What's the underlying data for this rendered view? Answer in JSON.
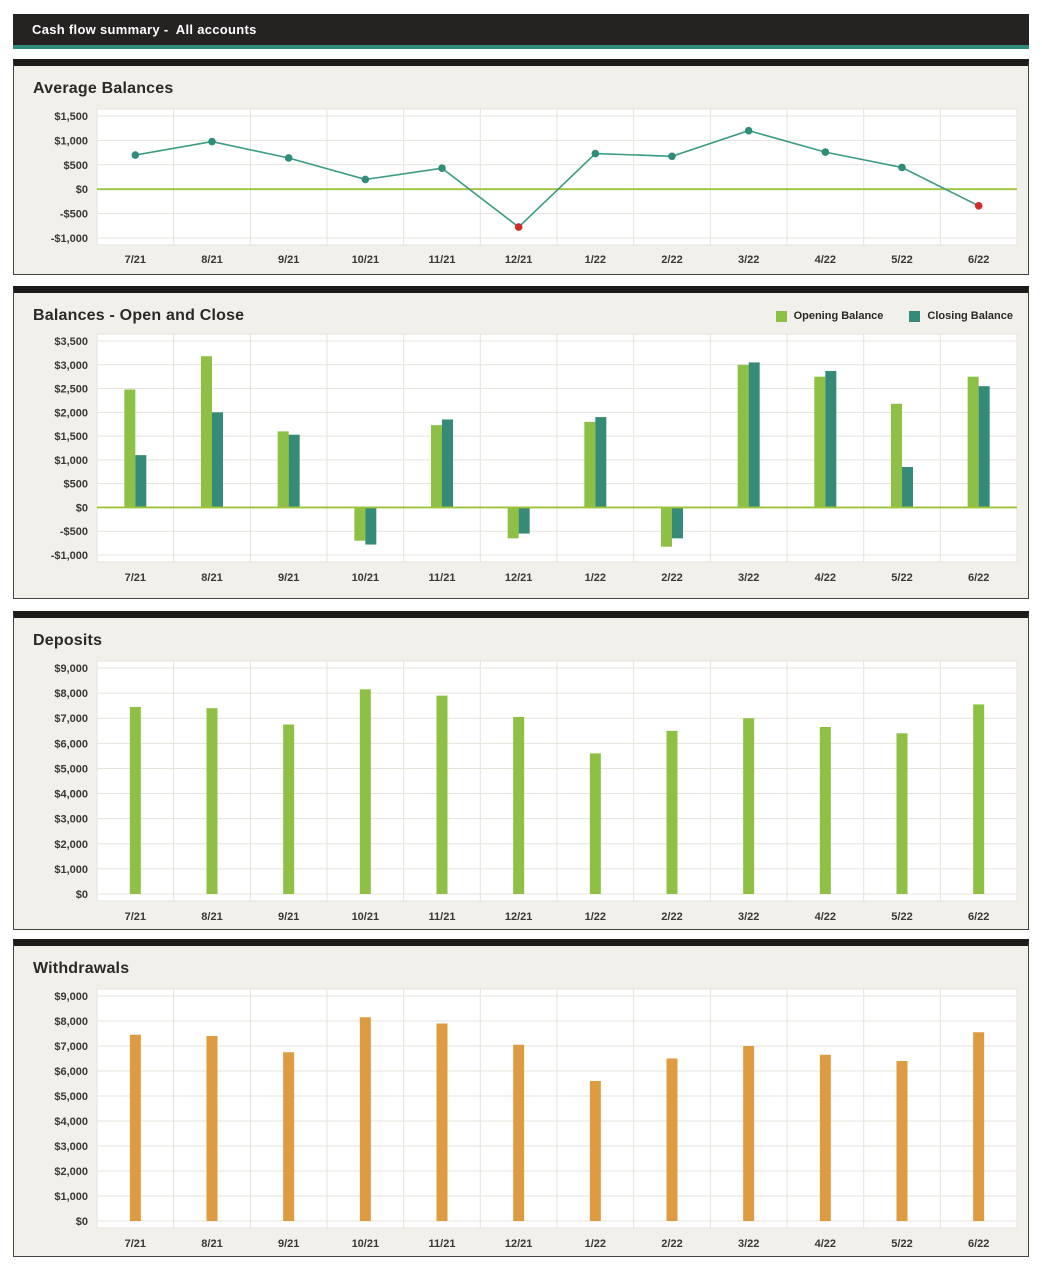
{
  "header": {
    "title": "Cash flow summary -  All accounts"
  },
  "colors": {
    "header_bg": "#252222",
    "header_accent": "#2e8c7c",
    "panel_bg": "#f2f0eb",
    "plot_bg": "#ffffff",
    "grid": "#e5e3dc",
    "axis_text": "#3a3836",
    "title_text": "#2b2928",
    "zero_line": "#9ec33b",
    "green": "#8dc044",
    "teal": "#358b77",
    "line": "#3b9c83",
    "marker": "#2f8d79",
    "marker_negative": "#d22c28",
    "orange": "#dd9c41"
  },
  "chart_data": [
    {
      "type": "line",
      "title": "Average Balances",
      "categories": [
        "7/21",
        "8/21",
        "9/21",
        "10/21",
        "11/21",
        "12/21",
        "1/22",
        "2/22",
        "3/22",
        "4/22",
        "5/22",
        "6/22"
      ],
      "series": [
        {
          "name": "Average Balance",
          "color_key": "line",
          "values": [
            700,
            975,
            640,
            200,
            430,
            -775,
            730,
            675,
            1200,
            760,
            445,
            -340
          ]
        }
      ],
      "ylim": [
        -1000,
        1500
      ],
      "ytick_step": 500,
      "zero_line": true,
      "legend": false,
      "note": "negative points drawn with red markers"
    },
    {
      "type": "bar",
      "title": "Balances - Open and Close",
      "categories": [
        "7/21",
        "8/21",
        "9/21",
        "10/21",
        "11/21",
        "12/21",
        "1/22",
        "2/22",
        "3/22",
        "4/22",
        "5/22",
        "6/22"
      ],
      "series": [
        {
          "name": "Opening Balance",
          "color_key": "green",
          "values": [
            2480,
            3180,
            1600,
            -700,
            1730,
            -650,
            1800,
            -825,
            3000,
            2750,
            2180,
            2750
          ]
        },
        {
          "name": "Closing Balance",
          "color_key": "teal",
          "values": [
            1100,
            2000,
            1530,
            -780,
            1850,
            -550,
            1900,
            -650,
            3050,
            2870,
            850,
            2550
          ]
        }
      ],
      "ylim": [
        -1000,
        3500
      ],
      "ytick_step": 500,
      "zero_line": true,
      "legend": true,
      "legend_position": "top-right"
    },
    {
      "type": "bar",
      "title": "Deposits",
      "categories": [
        "7/21",
        "8/21",
        "9/21",
        "10/21",
        "11/21",
        "12/21",
        "1/22",
        "2/22",
        "3/22",
        "4/22",
        "5/22",
        "6/22"
      ],
      "series": [
        {
          "name": "Deposits",
          "color_key": "green",
          "values": [
            7450,
            7400,
            6750,
            8150,
            7900,
            7050,
            5600,
            6500,
            7000,
            6650,
            6400,
            7550
          ]
        }
      ],
      "ylim": [
        0,
        9000
      ],
      "ytick_step": 1000,
      "zero_line": false,
      "legend": false
    },
    {
      "type": "bar",
      "title": "Withdrawals",
      "categories": [
        "7/21",
        "8/21",
        "9/21",
        "10/21",
        "11/21",
        "12/21",
        "1/22",
        "2/22",
        "3/22",
        "4/22",
        "5/22",
        "6/22"
      ],
      "series": [
        {
          "name": "Withdrawals",
          "color_key": "orange",
          "values": [
            7450,
            7400,
            6750,
            8150,
            7900,
            7050,
            5600,
            6500,
            7000,
            6650,
            6400,
            7550
          ]
        }
      ],
      "ylim": [
        0,
        9000
      ],
      "ytick_step": 1000,
      "zero_line": false,
      "legend": false
    }
  ]
}
